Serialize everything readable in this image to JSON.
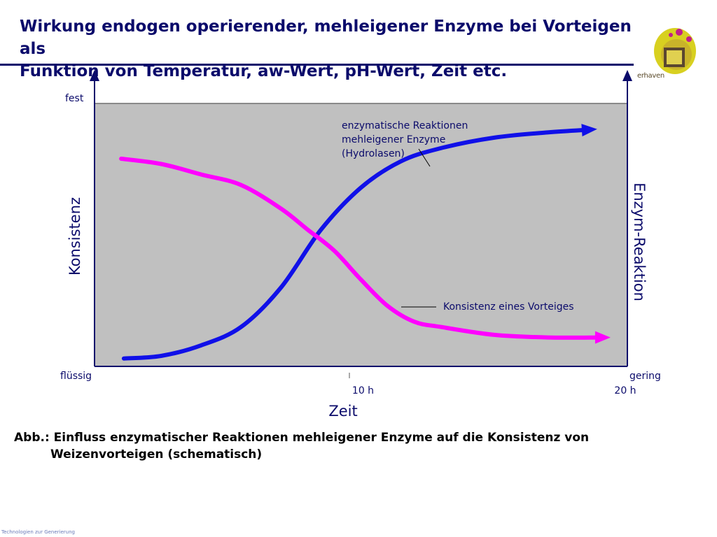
{
  "header": {
    "title_line1": "Wirkung endogen operierender, mehleigener Enzyme bei Vorteigen als",
    "title_line2": "Funktion von Temperatur, aw-Wert, pH-Wert, Zeit etc."
  },
  "logo": {
    "text": "erhaven"
  },
  "chart_data": {
    "type": "line",
    "xlabel": "Zeit",
    "ylabel_left": "Konsistenz",
    "ylabel_right": "Enzym-Reaktion",
    "y_left_ticks": {
      "top": "fest",
      "bottom": "flüssig"
    },
    "y_right_ticks": {
      "bottom": "gering"
    },
    "x_ticks": [
      {
        "value": 10,
        "label": "10 h"
      },
      {
        "value": 20,
        "label": "20 h"
      }
    ],
    "xlim": [
      0,
      20
    ],
    "ylim": [
      0,
      100
    ],
    "grid": false,
    "series": [
      {
        "name": "enzymatische Reaktionen mehleigener Enzyme (Hydrolasen)",
        "color": "#1010e8",
        "x": [
          1.1,
          2.5,
          4.0,
          5.5,
          7.0,
          8.5,
          10.0,
          11.5,
          13.0,
          15.0,
          17.0,
          18.5
        ],
        "y": [
          3,
          4,
          8,
          15,
          30,
          52,
          68,
          78,
          83,
          87,
          89,
          90
        ]
      },
      {
        "name": "Konsistenz eines Vorteiges",
        "color": "#ff00ff",
        "x": [
          1.0,
          2.5,
          4.0,
          5.5,
          7.0,
          8.0,
          9.0,
          10.0,
          11.0,
          12.0,
          13.0,
          15.0,
          17.0,
          19.0
        ],
        "y": [
          79,
          77,
          73,
          69,
          60,
          52,
          44,
          33,
          23,
          17,
          15,
          12,
          11,
          11
        ]
      }
    ],
    "annotations": [
      {
        "text_line1": "enzymatische Reaktionen",
        "text_line2": "mehleigener Enzyme",
        "text_line3": "(Hydrolasen)"
      },
      {
        "text": "Konsistenz eines Vorteiges"
      }
    ],
    "colors": {
      "plot_bg": "#c0c0c0",
      "axis": "#0b0b6b",
      "label": "#0b0b6b"
    }
  },
  "caption": {
    "line1": "Abb.: Einfluss enzymatischer Reaktionen mehleigener Enzyme auf die Konsistenz von",
    "line2": "Weizenvorteigen (schematisch)"
  },
  "footer": {
    "text": "Technologien zur Generierung"
  }
}
